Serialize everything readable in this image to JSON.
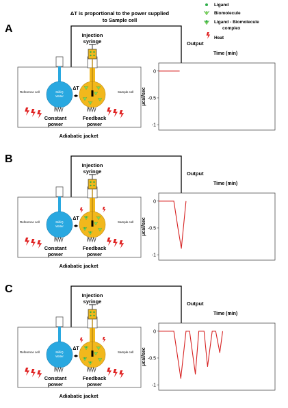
{
  "header": {
    "feedback_note_line1": "ΔT is proportional to the power supplied",
    "feedback_note_line2": "to Sample cell"
  },
  "legend": {
    "ligand": "Ligand",
    "biomolecule": "Biomolecule",
    "complex_line1": "Ligand - Biomolecule",
    "complex_line2": "complex",
    "heat": "Heat"
  },
  "colors": {
    "reference_cell": "#29a8e0",
    "sample_cell": "#f2b81c",
    "ligand": "#2fae4b",
    "biomolecule": "#7ed957",
    "heat": "#e02020",
    "trace": "#d62020"
  },
  "labels": {
    "injection_line1": "Injection",
    "injection_line2": "syringe",
    "output": "Output",
    "time_axis": "Time (min)",
    "y_axis": "µcal/sec",
    "reference_cell": "Reference cell",
    "sample_cell": "Sample cell",
    "water_line1": "MilliQ",
    "water_line2": "Water",
    "delta_t": "ΔT",
    "constant_line1": "Constant",
    "constant_line2": "power",
    "feedback_line1": "Feedback",
    "feedback_line2": "power",
    "adiabatic": "Adiabatic jacket"
  },
  "panels": [
    {
      "letter": "A"
    },
    {
      "letter": "B"
    },
    {
      "letter": "C"
    }
  ],
  "chart_data": [
    {
      "type": "line",
      "title": "",
      "xlabel": "Time (min)",
      "ylabel": "µcal/sec",
      "yticks": [
        0,
        -0.5,
        -1
      ],
      "ylim": [
        -1.1,
        0.15
      ],
      "xlim": [
        0,
        10
      ],
      "series": [
        {
          "x": [
            0,
            1.8
          ],
          "y": [
            0,
            0
          ]
        }
      ]
    },
    {
      "type": "line",
      "title": "",
      "xlabel": "Time (min)",
      "ylabel": "µcal/sec",
      "yticks": [
        0,
        -0.5,
        -1
      ],
      "ylim": [
        -1.1,
        0.15
      ],
      "xlim": [
        0,
        10
      ],
      "series": [
        {
          "x": [
            0,
            1.3,
            1.65,
            1.95,
            2.35
          ],
          "y": [
            0,
            0,
            -0.5,
            -0.88,
            0
          ]
        }
      ]
    },
    {
      "type": "line",
      "title": "",
      "xlabel": "Time (min)",
      "ylabel": "µcal/sec",
      "yticks": [
        0,
        -0.5,
        -1
      ],
      "ylim": [
        -1.1,
        0.15
      ],
      "xlim": [
        0,
        10
      ],
      "series": [
        {
          "x": [
            0,
            1.3,
            1.9,
            2.35,
            2.65,
            3.15,
            3.45,
            3.9,
            4.2,
            4.6,
            4.9,
            5.25,
            5.5
          ],
          "y": [
            0,
            0,
            -0.88,
            0,
            0,
            -0.8,
            0,
            0,
            -0.66,
            0,
            0,
            -0.4,
            0
          ]
        }
      ]
    }
  ]
}
